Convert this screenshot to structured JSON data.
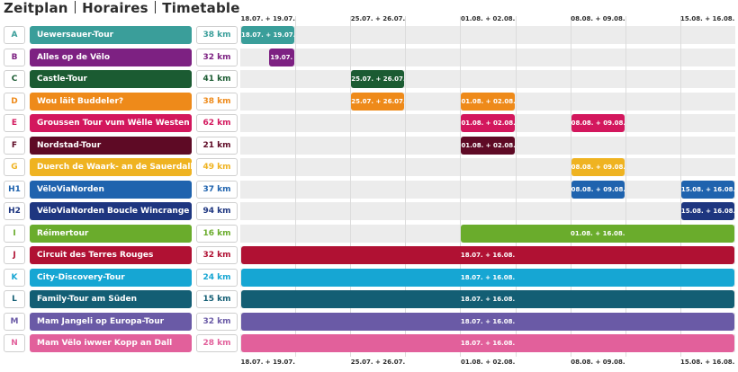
{
  "title": {
    "de": "Zeitplan",
    "fr": "Horaires",
    "en": "Timetable"
  },
  "periods": [
    "18.07. + 19.07.",
    "25.07. + 26.07.",
    "01.08. + 02.08.",
    "08.08. + 09.08.",
    "15.08. + 16.08."
  ],
  "tours": [
    {
      "letter": "A",
      "name": "Uewersauer-Tour",
      "km": "38 km",
      "color": "#3a9e9a",
      "bars": [
        {
          "start": 0,
          "end": 1,
          "label": "18.07. + 19.07."
        }
      ]
    },
    {
      "letter": "B",
      "name": "Alles op de Vëlo",
      "km": "32 km",
      "color": "#7d2182",
      "bars": [
        {
          "start": 0.5,
          "end": 1,
          "label": "19.07."
        }
      ]
    },
    {
      "letter": "C",
      "name": "Castle-Tour",
      "km": "41 km",
      "color": "#1b5b32",
      "bars": [
        {
          "start": 2,
          "end": 3,
          "label": "25.07. + 26.07."
        }
      ]
    },
    {
      "letter": "D",
      "name": "Wou läit Buddeler?",
      "km": "38 km",
      "color": "#ee8a1a",
      "bars": [
        {
          "start": 2,
          "end": 3,
          "label": "25.07. + 26.07."
        },
        {
          "start": 4,
          "end": 5,
          "label": "01.08. + 02.08."
        }
      ]
    },
    {
      "letter": "E",
      "name": "Groussen Tour vum Wëlle Westen",
      "km": "62 km",
      "color": "#d3175d",
      "bars": [
        {
          "start": 4,
          "end": 5,
          "label": "01.08. + 02.08."
        },
        {
          "start": 6,
          "end": 7,
          "label": "08.08. + 09.08."
        }
      ]
    },
    {
      "letter": "F",
      "name": "Nordstad-Tour",
      "km": "21 km",
      "color": "#5e0a25",
      "bars": [
        {
          "start": 4,
          "end": 5,
          "label": "01.08. + 02.08."
        }
      ]
    },
    {
      "letter": "G",
      "name": "Duerch de Waark- an de Sauerdall",
      "km": "49 km",
      "color": "#efb321",
      "bars": [
        {
          "start": 6,
          "end": 7,
          "label": "08.08. + 09.08."
        }
      ]
    },
    {
      "letter": "H1",
      "name": "VëloViaNorden",
      "km": "37 km",
      "color": "#1f63ae",
      "bars": [
        {
          "start": 6,
          "end": 7,
          "label": "08.08. + 09.08."
        },
        {
          "start": 8,
          "end": 9,
          "label": "15.08. + 16.08."
        }
      ]
    },
    {
      "letter": "H2",
      "name": "VëloViaNorden Boucle Wincrange",
      "km": "94 km",
      "color": "#1e3680",
      "bars": [
        {
          "start": 8,
          "end": 9,
          "label": "15.08. + 16.08."
        }
      ]
    },
    {
      "letter": "I",
      "name": "Réimertour",
      "km": "16 km",
      "color": "#6aac2c",
      "bars": [
        {
          "start": 4,
          "end": 9,
          "label": "01.08. + 16.08."
        }
      ]
    },
    {
      "letter": "J",
      "name": "Circuit des Terres Rouges",
      "km": "32 km",
      "color": "#b01133",
      "bars": [
        {
          "start": 0,
          "end": 9,
          "label": "18.07. + 16.08."
        }
      ]
    },
    {
      "letter": "K",
      "name": "City-Discovery-Tour",
      "km": "24 km",
      "color": "#16a6d3",
      "bars": [
        {
          "start": 0,
          "end": 9,
          "label": "18.07. + 16.08."
        }
      ]
    },
    {
      "letter": "L",
      "name": "Family-Tour am Süden",
      "km": "15 km",
      "color": "#135e74",
      "bars": [
        {
          "start": 0,
          "end": 9,
          "label": "18.07. + 16.08."
        }
      ]
    },
    {
      "letter": "M",
      "name": "Mam Jangeli op Europa-Tour",
      "km": "32 km",
      "color": "#6a5aa6",
      "bars": [
        {
          "start": 0,
          "end": 9,
          "label": "18.07. + 16.08."
        }
      ]
    },
    {
      "letter": "N",
      "name": "Mam Vëlo iwwer Kopp an Dall",
      "km": "28 km",
      "color": "#e2609b",
      "bars": [
        {
          "start": 0,
          "end": 9,
          "label": "18.07. + 16.08."
        }
      ]
    }
  ]
}
